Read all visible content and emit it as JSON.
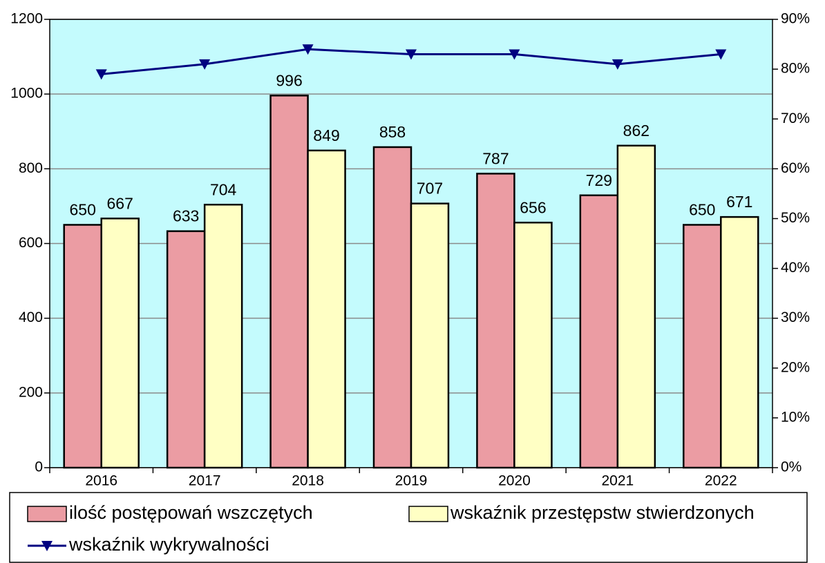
{
  "chart_data": {
    "type": "bar",
    "categories": [
      "2016",
      "2017",
      "2018",
      "2019",
      "2020",
      "2021",
      "2022"
    ],
    "series": [
      {
        "name": "ilość postępowań wszczętych",
        "type": "bar",
        "color": "#eb9ca3",
        "values": [
          650,
          633,
          996,
          858,
          787,
          729,
          650
        ]
      },
      {
        "name": "wskaźnik przestępstw stwierdzonych",
        "type": "bar",
        "color": "#ffffc4",
        "values": [
          667,
          704,
          849,
          707,
          656,
          862,
          671
        ]
      },
      {
        "name": "wskaźnik wykrywalności",
        "type": "line",
        "axis": "y2",
        "color": "#000080",
        "values": [
          79,
          81,
          84,
          83,
          83,
          81,
          83
        ]
      }
    ],
    "ylim": [
      0,
      1200
    ],
    "yticks": [
      0,
      200,
      400,
      600,
      800,
      1000,
      1200
    ],
    "y2lim": [
      0,
      90
    ],
    "y2ticks": [
      {
        "value": 0,
        "label": "0%"
      },
      {
        "value": 10,
        "label": "10%"
      },
      {
        "value": 20,
        "label": "20%"
      },
      {
        "value": 30,
        "label": "30%"
      },
      {
        "value": 40,
        "label": "40%"
      },
      {
        "value": 50,
        "label": "50%"
      },
      {
        "value": 60,
        "label": "60%"
      },
      {
        "value": 70,
        "label": "70%"
      },
      {
        "value": 80,
        "label": "80%"
      },
      {
        "value": 90,
        "label": "90%"
      }
    ],
    "grid": true,
    "legend": "bottom",
    "background": "#c4fbfd"
  }
}
